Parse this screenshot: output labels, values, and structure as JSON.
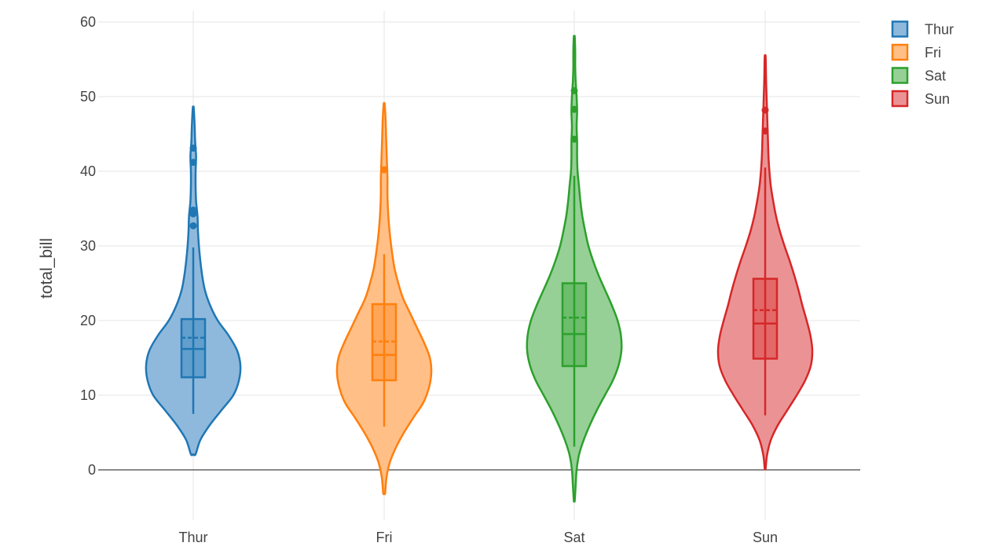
{
  "chart_data": {
    "type": "violin",
    "title": "",
    "xlabel": "",
    "ylabel": "total_bill",
    "ylim": [
      -7,
      62
    ],
    "yticks": [
      0,
      10,
      20,
      30,
      40,
      50,
      60
    ],
    "grid": true,
    "legend_position": "top-right",
    "categories": [
      "Thur",
      "Fri",
      "Sat",
      "Sun"
    ],
    "series": [
      {
        "name": "Thur",
        "color": "#1f77b4",
        "fill": "#8fb9dc",
        "box": {
          "q1": 12.4,
          "median": 16.2,
          "q3": 20.2,
          "mean": 17.7,
          "whisker_low": 7.5,
          "whisker_high": 29.8
        },
        "outliers": [
          32.7,
          34.3,
          34.8,
          41.2,
          43.1
        ],
        "density": [
          [
            2.1,
            0.05
          ],
          [
            4,
            0.15
          ],
          [
            6,
            0.35
          ],
          [
            8,
            0.6
          ],
          [
            10,
            0.85
          ],
          [
            12,
            0.97
          ],
          [
            14,
            1.0
          ],
          [
            16,
            0.93
          ],
          [
            18,
            0.75
          ],
          [
            20,
            0.52
          ],
          [
            22,
            0.36
          ],
          [
            24,
            0.25
          ],
          [
            26,
            0.19
          ],
          [
            28,
            0.15
          ],
          [
            30,
            0.12
          ],
          [
            32,
            0.1
          ],
          [
            34,
            0.09
          ],
          [
            36,
            0.06
          ],
          [
            38,
            0.05
          ],
          [
            40,
            0.05
          ],
          [
            42,
            0.06
          ],
          [
            44,
            0.04
          ],
          [
            46,
            0.03
          ],
          [
            48.5,
            0.01
          ]
        ]
      },
      {
        "name": "Fri",
        "color": "#ff7f0e",
        "fill": "#ffbf87",
        "box": {
          "q1": 12.0,
          "median": 15.4,
          "q3": 22.2,
          "mean": 17.2,
          "whisker_low": 5.8,
          "whisker_high": 28.9
        },
        "outliers": [
          40.2
        ],
        "density": [
          [
            -3.1,
            0.02
          ],
          [
            -1,
            0.05
          ],
          [
            1,
            0.12
          ],
          [
            3,
            0.25
          ],
          [
            5,
            0.42
          ],
          [
            7,
            0.62
          ],
          [
            9,
            0.83
          ],
          [
            11,
            0.95
          ],
          [
            13,
            1.0
          ],
          [
            15,
            0.97
          ],
          [
            17,
            0.85
          ],
          [
            19,
            0.7
          ],
          [
            21,
            0.55
          ],
          [
            23,
            0.4
          ],
          [
            25,
            0.3
          ],
          [
            27,
            0.22
          ],
          [
            29,
            0.17
          ],
          [
            31,
            0.13
          ],
          [
            33,
            0.1
          ],
          [
            35,
            0.08
          ],
          [
            37,
            0.07
          ],
          [
            39,
            0.07
          ],
          [
            41,
            0.06
          ],
          [
            43,
            0.05
          ],
          [
            45,
            0.04
          ],
          [
            47,
            0.03
          ],
          [
            49,
            0.01
          ]
        ]
      },
      {
        "name": "Sat",
        "color": "#2ca02c",
        "fill": "#96d096",
        "box": {
          "q1": 13.9,
          "median": 18.2,
          "q3": 25.0,
          "mean": 20.4,
          "whisker_low": 3.1,
          "whisker_high": 39.4
        },
        "outliers": [
          44.3,
          48.3,
          50.8
        ],
        "density": [
          [
            -4.1,
            0.01
          ],
          [
            -2,
            0.03
          ],
          [
            0,
            0.05
          ],
          [
            2,
            0.1
          ],
          [
            4,
            0.2
          ],
          [
            6,
            0.33
          ],
          [
            8,
            0.48
          ],
          [
            10,
            0.65
          ],
          [
            12,
            0.82
          ],
          [
            14,
            0.94
          ],
          [
            16,
            1.0
          ],
          [
            18,
            0.99
          ],
          [
            20,
            0.92
          ],
          [
            22,
            0.8
          ],
          [
            24,
            0.66
          ],
          [
            26,
            0.52
          ],
          [
            28,
            0.4
          ],
          [
            30,
            0.3
          ],
          [
            32,
            0.23
          ],
          [
            34,
            0.17
          ],
          [
            36,
            0.13
          ],
          [
            38,
            0.1
          ],
          [
            40,
            0.07
          ],
          [
            42,
            0.06
          ],
          [
            44,
            0.06
          ],
          [
            46,
            0.05
          ],
          [
            48,
            0.06
          ],
          [
            50,
            0.05
          ],
          [
            52,
            0.03
          ],
          [
            54,
            0.02
          ],
          [
            56,
            0.02
          ],
          [
            58,
            0.01
          ]
        ]
      },
      {
        "name": "Sun",
        "color": "#d62728",
        "fill": "#eb9394",
        "box": {
          "q1": 14.9,
          "median": 19.6,
          "q3": 25.6,
          "mean": 21.4,
          "whisker_low": 7.3,
          "whisker_high": 40.5
        },
        "outliers": [
          45.4,
          48.2
        ],
        "density": [
          [
            0.2,
            0.01
          ],
          [
            2,
            0.04
          ],
          [
            4,
            0.12
          ],
          [
            6,
            0.27
          ],
          [
            8,
            0.47
          ],
          [
            10,
            0.67
          ],
          [
            12,
            0.85
          ],
          [
            14,
            0.97
          ],
          [
            16,
            1.0
          ],
          [
            18,
            0.96
          ],
          [
            20,
            0.88
          ],
          [
            22,
            0.79
          ],
          [
            24,
            0.71
          ],
          [
            26,
            0.62
          ],
          [
            28,
            0.52
          ],
          [
            30,
            0.41
          ],
          [
            32,
            0.31
          ],
          [
            34,
            0.23
          ],
          [
            36,
            0.17
          ],
          [
            38,
            0.12
          ],
          [
            40,
            0.09
          ],
          [
            42,
            0.07
          ],
          [
            44,
            0.06
          ],
          [
            46,
            0.05
          ],
          [
            48,
            0.04
          ],
          [
            50,
            0.03
          ],
          [
            52,
            0.02
          ],
          [
            55.3,
            0.01
          ]
        ]
      }
    ]
  }
}
